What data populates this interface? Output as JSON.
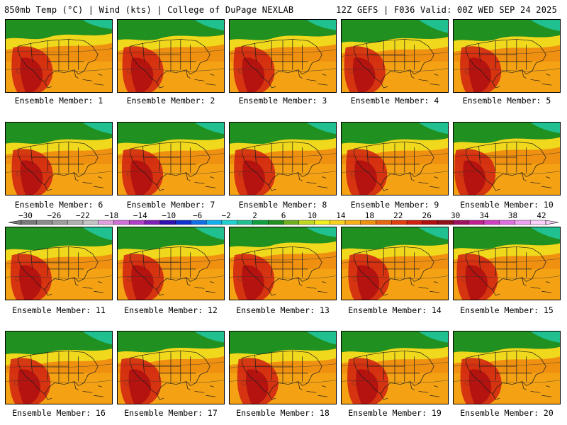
{
  "header": {
    "left": "850mb Temp (°C) | Wind (kts) | College of DuPage NEXLAB",
    "right": "12Z GEFS | F036 Valid: 00Z WED SEP 24 2025"
  },
  "member_prefix": "Ensemble Member: ",
  "members": [
    "1",
    "2",
    "3",
    "4",
    "5",
    "6",
    "7",
    "8",
    "9",
    "10",
    "11",
    "12",
    "13",
    "14",
    "15",
    "16",
    "17",
    "18",
    "19",
    "20"
  ],
  "colorbar": {
    "labels": [
      "−30",
      "−26",
      "−22",
      "−18",
      "−14",
      "−10",
      "−6",
      "−2",
      "2",
      "6",
      "10",
      "14",
      "18",
      "22",
      "26",
      "30",
      "34",
      "38",
      "42"
    ],
    "colors": [
      "#7a7a7a",
      "#8c8c8c",
      "#9e9e9e",
      "#b0b0b0",
      "#c4c4c4",
      "#e0a0e0",
      "#d070d8",
      "#b040c8",
      "#8020b8",
      "#3010b0",
      "#1030d0",
      "#1070e8",
      "#10b0f0",
      "#20d0d0",
      "#20c090",
      "#10a040",
      "#209020",
      "#70b020",
      "#c0d820",
      "#f0f020",
      "#f8d020",
      "#f8b018",
      "#f09010",
      "#e86810",
      "#e04010",
      "#d02010",
      "#b01010",
      "#901018",
      "#a01060",
      "#c02090",
      "#d040c0",
      "#e070e0",
      "#f0a0f0",
      "#fad0fa"
    ]
  },
  "map_colors": {
    "ocean_warm": "#f09010",
    "ocean_mid": "#f8b018",
    "hot": "#d02010",
    "very_hot": "#b01010",
    "cool_north": "#209020",
    "cold_north": "#20c090",
    "yellow": "#f0f020"
  }
}
